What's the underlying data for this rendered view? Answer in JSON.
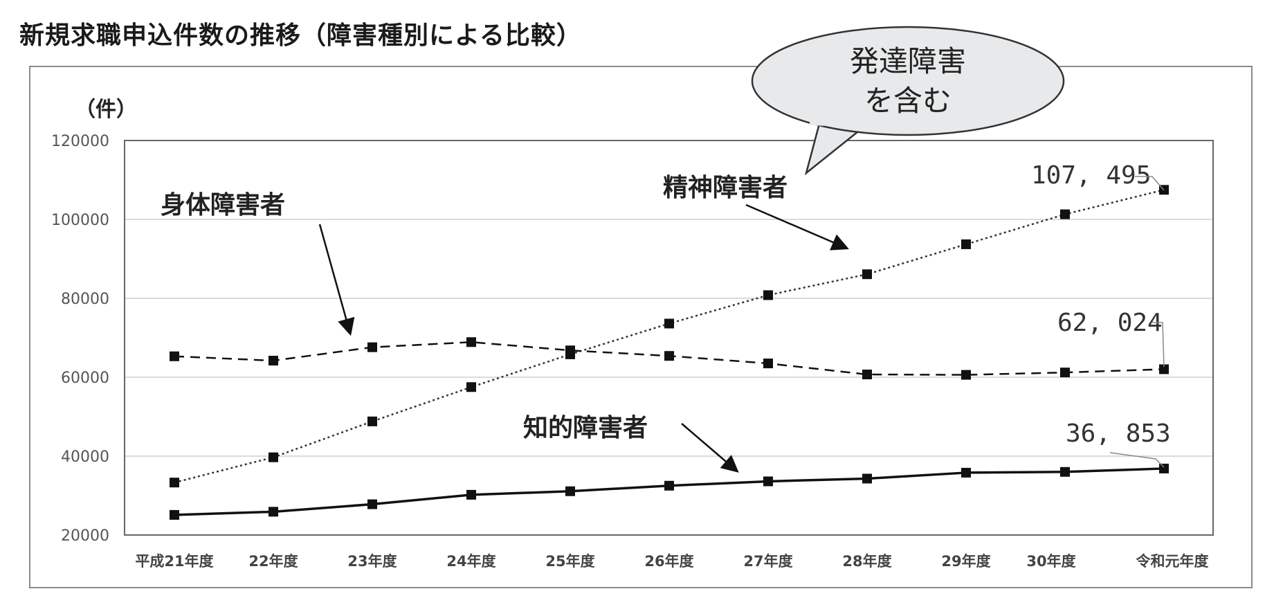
{
  "title": "新規求職申込件数の推移（障害種別による比較）",
  "chart_data": {
    "type": "line",
    "unit_label": "（件）",
    "ylim": [
      20000,
      120000
    ],
    "yticks": [
      "20000",
      "40000",
      "60000",
      "80000",
      "100000",
      "120000"
    ],
    "grid": true,
    "categories": [
      "平成21年度",
      "22年度",
      "23年度",
      "24年度",
      "25年度",
      "26年度",
      "27年度",
      "28年度",
      "29年度",
      "30年度",
      "令和元年度"
    ],
    "series": [
      {
        "name": "精神障害者",
        "style": "dotted",
        "color": "#333333",
        "values": [
          33300,
          39700,
          48800,
          57500,
          65800,
          73600,
          80800,
          86100,
          93700,
          101300,
          107495
        ],
        "end_label": "107, 495"
      },
      {
        "name": "身体障害者",
        "style": "dashed",
        "color": "#111111",
        "values": [
          65300,
          64200,
          67600,
          68900,
          66800,
          65400,
          63500,
          60700,
          60600,
          61200,
          62024
        ],
        "end_label": "62, 024"
      },
      {
        "name": "知的障害者",
        "style": "solid",
        "color": "#111111",
        "values": [
          25100,
          25900,
          27800,
          30200,
          31100,
          32500,
          33600,
          34300,
          35800,
          36000,
          36853
        ],
        "end_label": "36, 853"
      }
    ],
    "annotation": {
      "line1": "発達障害",
      "line2": "を含む"
    }
  }
}
